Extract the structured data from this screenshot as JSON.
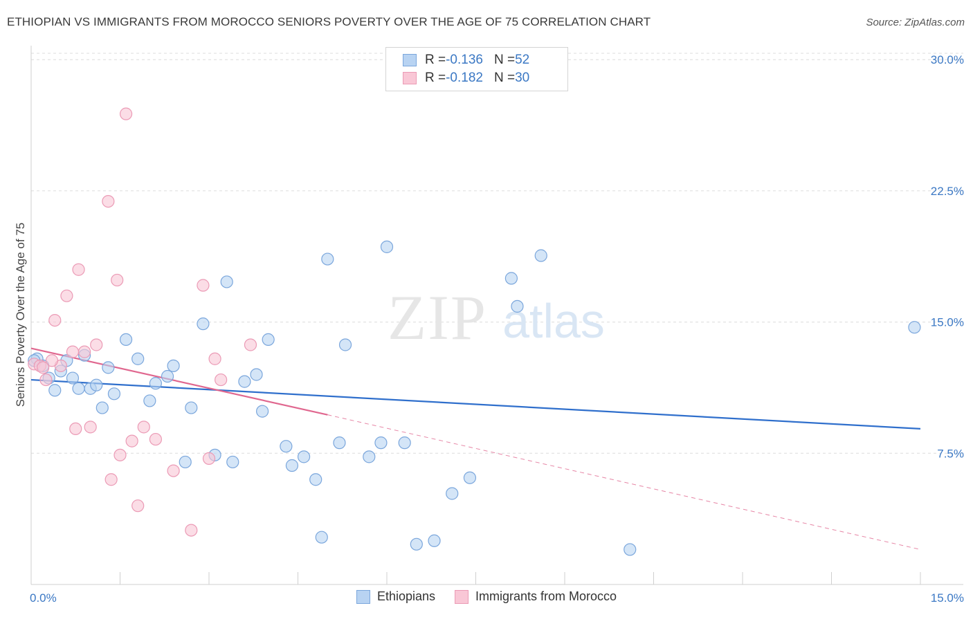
{
  "title": "ETHIOPIAN VS IMMIGRANTS FROM MOROCCO SENIORS POVERTY OVER THE AGE OF 75 CORRELATION CHART",
  "source": "Source: ZipAtlas.com",
  "watermark": {
    "zip": "ZIP",
    "atlas": "atlas"
  },
  "legend_top": [
    {
      "r_label": "R = ",
      "r_value": "-0.136",
      "n_label": "N = ",
      "n_value": "52"
    },
    {
      "r_label": "R = ",
      "r_value": "-0.182",
      "n_label": "N = ",
      "n_value": "30"
    }
  ],
  "colors": {
    "blue_fill": "#b8d3f2",
    "blue_stroke": "#7aa6dc",
    "blue_line": "#2f6fcc",
    "pink_fill": "#f9c7d6",
    "pink_stroke": "#eb9ab5",
    "pink_line": "#e0678f",
    "grid": "#dcdcdc",
    "tick_text": "#3b78c4"
  },
  "chart_data": {
    "type": "scatter",
    "title": "ETHIOPIAN VS IMMIGRANTS FROM MOROCCO SENIORS POVERTY OVER THE AGE OF 75 CORRELATION CHART",
    "xlabel": "",
    "ylabel": "Seniors Poverty Over the Age of 75",
    "xlim": [
      0,
      15
    ],
    "ylim": [
      0,
      30.8
    ],
    "x_tick_labels": [
      "0.0%",
      "15.0%"
    ],
    "y_ticks": [
      7.5,
      15.0,
      22.5,
      30.0
    ],
    "y_tick_labels": [
      "7.5%",
      "15.0%",
      "22.5%",
      "30.0%"
    ],
    "grid": true,
    "legend_position": "bottom",
    "series": [
      {
        "name": "Ethiopians",
        "r": -0.136,
        "n": 52,
        "trend": {
          "x0": 0,
          "y0": 11.7,
          "x1": 15,
          "y1": 8.9
        },
        "points": [
          [
            0.1,
            12.9
          ],
          [
            0.2,
            12.5
          ],
          [
            0.3,
            11.8
          ],
          [
            0.4,
            11.1
          ],
          [
            0.5,
            12.2
          ],
          [
            0.6,
            12.8
          ],
          [
            0.7,
            11.8
          ],
          [
            0.8,
            11.2
          ],
          [
            0.9,
            13.1
          ],
          [
            1.0,
            11.2
          ],
          [
            1.1,
            11.4
          ],
          [
            1.2,
            10.1
          ],
          [
            1.3,
            12.4
          ],
          [
            1.4,
            10.9
          ],
          [
            1.6,
            14.0
          ],
          [
            1.8,
            12.9
          ],
          [
            2.0,
            10.5
          ],
          [
            2.1,
            11.5
          ],
          [
            2.3,
            11.9
          ],
          [
            2.4,
            12.5
          ],
          [
            2.6,
            7.0
          ],
          [
            2.7,
            10.1
          ],
          [
            2.9,
            14.9
          ],
          [
            3.1,
            7.4
          ],
          [
            3.3,
            17.3
          ],
          [
            3.4,
            7.0
          ],
          [
            3.6,
            11.6
          ],
          [
            3.8,
            12.0
          ],
          [
            3.9,
            9.9
          ],
          [
            4.0,
            14.0
          ],
          [
            4.3,
            7.9
          ],
          [
            4.4,
            6.8
          ],
          [
            4.6,
            7.3
          ],
          [
            4.8,
            6.0
          ],
          [
            4.9,
            2.7
          ],
          [
            5.0,
            18.6
          ],
          [
            5.2,
            8.1
          ],
          [
            5.3,
            13.7
          ],
          [
            5.7,
            7.3
          ],
          [
            5.9,
            8.1
          ],
          [
            6.0,
            19.3
          ],
          [
            6.3,
            8.1
          ],
          [
            6.5,
            2.3
          ],
          [
            6.8,
            2.5
          ],
          [
            7.1,
            5.2
          ],
          [
            7.4,
            6.1
          ],
          [
            8.1,
            17.5
          ],
          [
            8.2,
            15.9
          ],
          [
            8.6,
            18.8
          ],
          [
            10.1,
            2.0
          ],
          [
            14.9,
            14.7
          ],
          [
            0.05,
            12.8
          ]
        ]
      },
      {
        "name": "Immigrants from Morocco",
        "r": -0.182,
        "n": 30,
        "trend": {
          "x0": 0,
          "y0": 13.5,
          "x1": 5.0,
          "y1": 9.7,
          "x_ext": 15,
          "y_ext": 2.0
        },
        "points": [
          [
            0.05,
            12.6
          ],
          [
            0.15,
            12.5
          ],
          [
            0.25,
            11.7
          ],
          [
            0.4,
            15.1
          ],
          [
            0.5,
            12.5
          ],
          [
            0.6,
            16.5
          ],
          [
            0.7,
            13.3
          ],
          [
            0.75,
            8.9
          ],
          [
            0.8,
            18.0
          ],
          [
            0.9,
            13.3
          ],
          [
            1.0,
            9.0
          ],
          [
            1.1,
            13.7
          ],
          [
            1.3,
            21.9
          ],
          [
            1.35,
            6.0
          ],
          [
            1.45,
            17.4
          ],
          [
            1.5,
            7.4
          ],
          [
            1.6,
            26.9
          ],
          [
            1.7,
            8.2
          ],
          [
            1.8,
            4.5
          ],
          [
            1.9,
            9.0
          ],
          [
            2.1,
            8.3
          ],
          [
            2.4,
            6.5
          ],
          [
            2.7,
            3.1
          ],
          [
            2.9,
            17.1
          ],
          [
            3.0,
            7.2
          ],
          [
            3.1,
            12.9
          ],
          [
            3.2,
            11.7
          ],
          [
            3.7,
            13.7
          ],
          [
            0.35,
            12.8
          ],
          [
            0.2,
            12.4
          ]
        ]
      }
    ]
  }
}
